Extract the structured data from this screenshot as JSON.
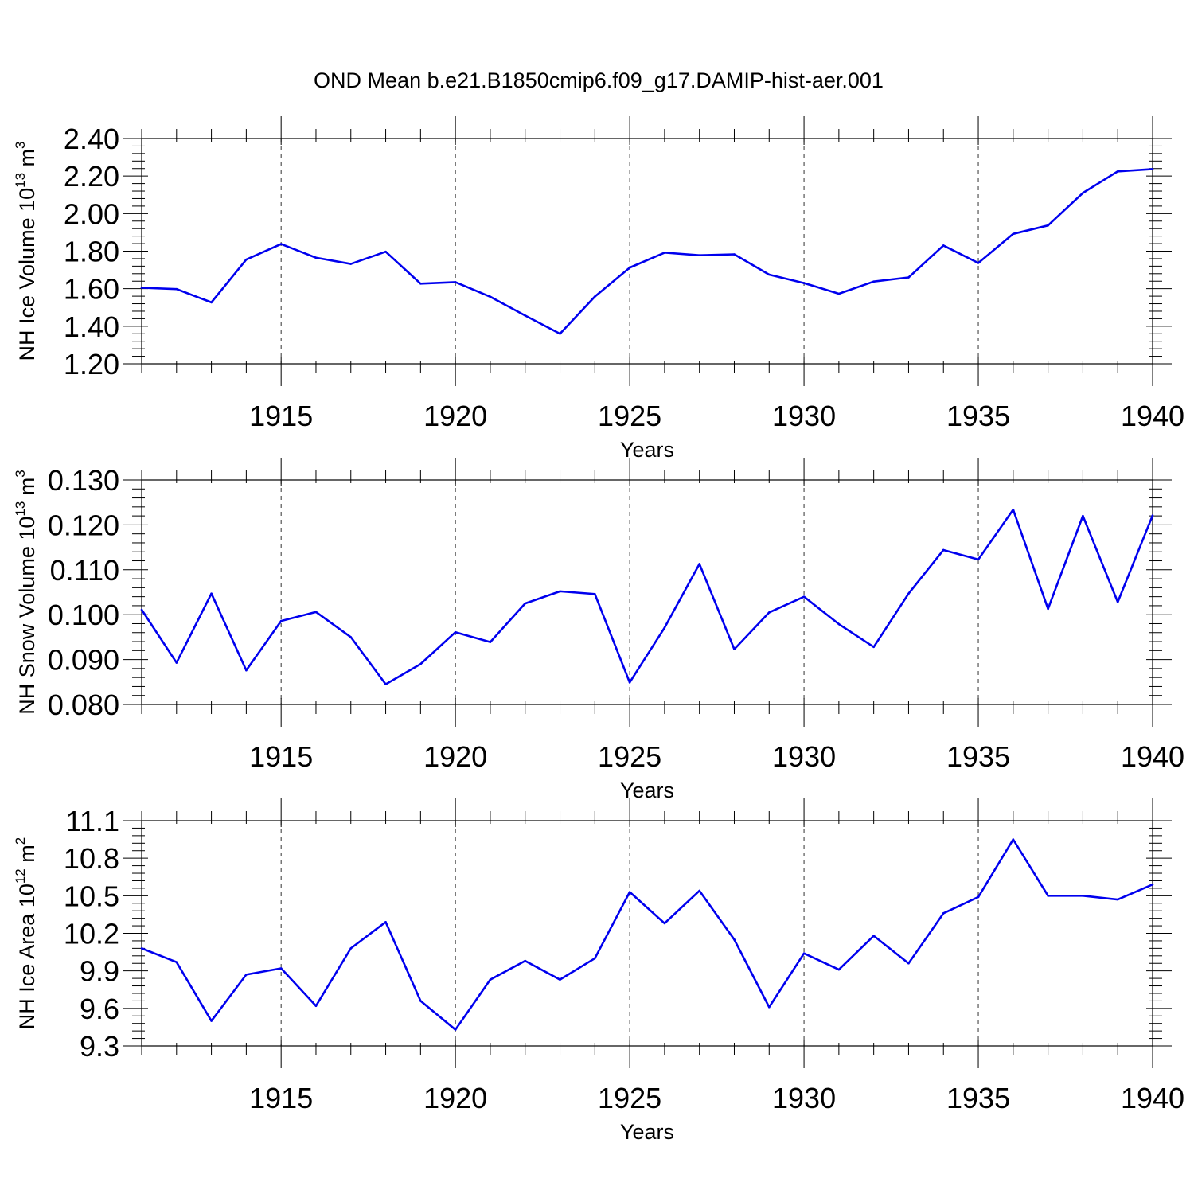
{
  "figure": {
    "title": "OND Mean b.e21.B1850cmip6.f09_g17.DAMIP-hist-aer.001",
    "line_color": "#0000ee"
  },
  "chart_data": [
    {
      "type": "line",
      "xlabel": "Years",
      "ylabel": {
        "base": "NH Ice Volume 10",
        "exp": "13",
        "unit": " m",
        "unit_exp": "3"
      },
      "xlim": [
        1911,
        1940
      ],
      "ylim": [
        1.2,
        2.4
      ],
      "xticks": [
        1915,
        1920,
        1925,
        1930,
        1935,
        1940
      ],
      "yticks": [
        1.2,
        1.4,
        1.6,
        1.8,
        2.0,
        2.2,
        2.4
      ],
      "ytick_labels": [
        "1.20",
        "1.40",
        "1.60",
        "1.80",
        "2.00",
        "2.20",
        "2.40"
      ],
      "yminor_step": 0.04,
      "grid": "dashed vertical at major x ticks",
      "x": [
        1911,
        1912,
        1913,
        1914,
        1915,
        1916,
        1917,
        1918,
        1919,
        1920,
        1921,
        1922,
        1923,
        1924,
        1925,
        1926,
        1927,
        1928,
        1929,
        1930,
        1931,
        1932,
        1933,
        1934,
        1935,
        1936,
        1937,
        1938,
        1939,
        1940
      ],
      "y": [
        1.605,
        1.598,
        1.527,
        1.755,
        1.838,
        1.765,
        1.732,
        1.797,
        1.627,
        1.635,
        1.557,
        1.457,
        1.36,
        1.558,
        1.712,
        1.792,
        1.778,
        1.783,
        1.675,
        1.63,
        1.573,
        1.638,
        1.66,
        1.83,
        1.737,
        1.892,
        1.937,
        2.11,
        2.225,
        2.237
      ]
    },
    {
      "type": "line",
      "xlabel": "Years",
      "ylabel": {
        "base": "NH Snow Volume 10",
        "exp": "13",
        "unit": " m",
        "unit_exp": "3"
      },
      "xlim": [
        1911,
        1940
      ],
      "ylim": [
        0.08,
        0.13
      ],
      "xticks": [
        1915,
        1920,
        1925,
        1930,
        1935,
        1940
      ],
      "yticks": [
        0.08,
        0.09,
        0.1,
        0.11,
        0.12,
        0.13
      ],
      "ytick_labels": [
        "0.080",
        "0.090",
        "0.100",
        "0.110",
        "0.120",
        "0.130"
      ],
      "yminor_step": 0.002,
      "grid": "dashed vertical at major x ticks",
      "x": [
        1911,
        1912,
        1913,
        1914,
        1915,
        1916,
        1917,
        1918,
        1919,
        1920,
        1921,
        1922,
        1923,
        1924,
        1925,
        1926,
        1927,
        1928,
        1929,
        1930,
        1931,
        1932,
        1933,
        1934,
        1935,
        1936,
        1937,
        1938,
        1939,
        1940
      ],
      "y": [
        0.1011,
        0.0893,
        0.1047,
        0.0876,
        0.0986,
        0.1006,
        0.095,
        0.0845,
        0.089,
        0.0961,
        0.0939,
        0.1025,
        0.1052,
        0.1046,
        0.0849,
        0.0971,
        0.1113,
        0.0923,
        0.1005,
        0.104,
        0.0979,
        0.0928,
        0.1047,
        0.1144,
        0.1123,
        0.1234,
        0.1013,
        0.122,
        0.1028,
        0.1221
      ]
    },
    {
      "type": "line",
      "xlabel": "Years",
      "ylabel": {
        "base": "NH Ice Area 10",
        "exp": "12",
        "unit": " m",
        "unit_exp": "2"
      },
      "xlim": [
        1911,
        1940
      ],
      "ylim": [
        9.3,
        11.1
      ],
      "xticks": [
        1915,
        1920,
        1925,
        1930,
        1935,
        1940
      ],
      "yticks": [
        9.3,
        9.6,
        9.9,
        10.2,
        10.5,
        10.8,
        11.1
      ],
      "ytick_labels": [
        "9.3",
        "9.6",
        "9.9",
        "10.2",
        "10.5",
        "10.8",
        "11.1"
      ],
      "yminor_step": 0.06,
      "grid": "dashed vertical at major x ticks",
      "x": [
        1911,
        1912,
        1913,
        1914,
        1915,
        1916,
        1917,
        1918,
        1919,
        1920,
        1921,
        1922,
        1923,
        1924,
        1925,
        1926,
        1927,
        1928,
        1929,
        1930,
        1931,
        1932,
        1933,
        1934,
        1935,
        1936,
        1937,
        1938,
        1939,
        1940
      ],
      "y": [
        10.08,
        9.97,
        9.5,
        9.87,
        9.92,
        9.62,
        10.08,
        10.29,
        9.66,
        9.43,
        9.83,
        9.98,
        9.83,
        10.0,
        10.53,
        10.28,
        10.54,
        10.15,
        9.61,
        10.04,
        9.91,
        10.18,
        9.96,
        10.36,
        10.49,
        10.95,
        10.5,
        10.5,
        10.47,
        10.59
      ]
    }
  ]
}
